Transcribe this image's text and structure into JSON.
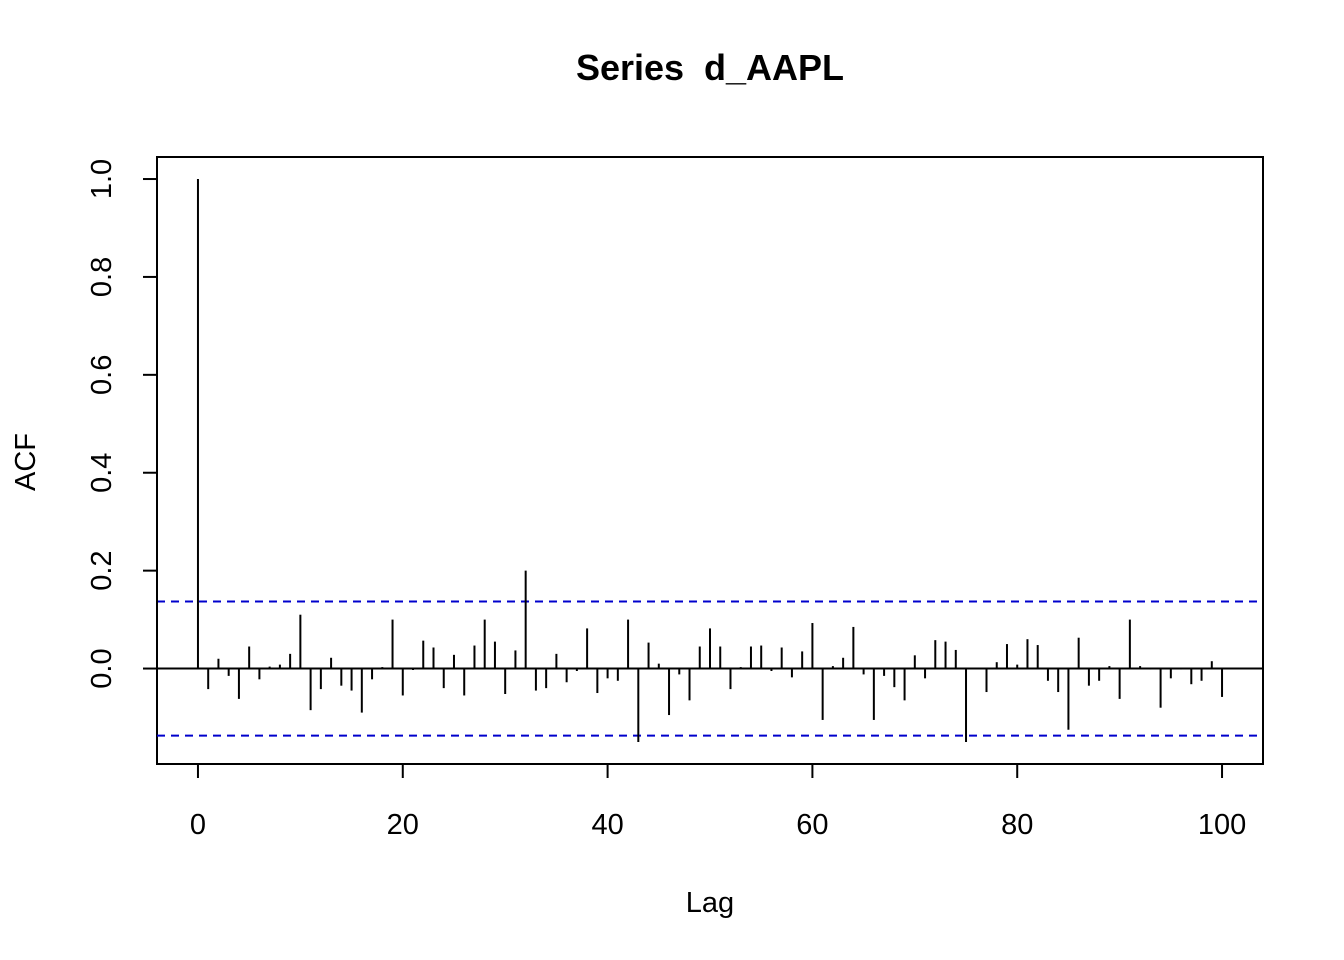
{
  "chart_data": {
    "type": "bar",
    "title": "Series  d_AAPL",
    "xlabel": "Lag",
    "ylabel": "ACF",
    "xlim": [
      -4,
      104
    ],
    "ylim": [
      -0.195,
      1.045
    ],
    "x_ticks": [
      0,
      20,
      40,
      60,
      80,
      100
    ],
    "y_ticks": [
      0.0,
      0.2,
      0.4,
      0.6,
      0.8,
      1.0
    ],
    "confidence_bound": 0.137,
    "colors": {
      "bars": "#000000",
      "confidence": "#0000cc",
      "zero_line": "#000000"
    },
    "lags": [
      0,
      1,
      2,
      3,
      4,
      5,
      6,
      7,
      8,
      9,
      10,
      11,
      12,
      13,
      14,
      15,
      16,
      17,
      18,
      19,
      20,
      21,
      22,
      23,
      24,
      25,
      26,
      27,
      28,
      29,
      30,
      31,
      32,
      33,
      34,
      35,
      36,
      37,
      38,
      39,
      40,
      41,
      42,
      43,
      44,
      45,
      46,
      47,
      48,
      49,
      50,
      51,
      52,
      53,
      54,
      55,
      56,
      57,
      58,
      59,
      60,
      61,
      62,
      63,
      64,
      65,
      66,
      67,
      68,
      69,
      70,
      71,
      72,
      73,
      74,
      75,
      76,
      77,
      78,
      79,
      80,
      81,
      82,
      83,
      84,
      85,
      86,
      87,
      88,
      89,
      90,
      91,
      92,
      93,
      94,
      95,
      96,
      97,
      98,
      99,
      100
    ],
    "values": [
      1.0,
      -0.042,
      0.02,
      -0.015,
      -0.062,
      0.045,
      -0.022,
      0.004,
      0.008,
      0.03,
      0.11,
      -0.085,
      -0.042,
      0.022,
      -0.035,
      -0.045,
      -0.09,
      -0.022,
      0.003,
      0.1,
      -0.055,
      -0.003,
      0.057,
      0.043,
      -0.04,
      0.028,
      -0.055,
      0.047,
      0.1,
      0.055,
      -0.052,
      0.037,
      0.2,
      -0.045,
      -0.04,
      0.03,
      -0.028,
      -0.005,
      0.082,
      -0.05,
      -0.02,
      -0.025,
      0.1,
      -0.15,
      0.053,
      0.01,
      -0.095,
      -0.012,
      -0.065,
      0.045,
      0.082,
      0.045,
      -0.042,
      0.003,
      0.045,
      0.047,
      -0.005,
      0.043,
      -0.018,
      0.035,
      0.093,
      -0.105,
      0.005,
      0.022,
      0.085,
      -0.012,
      -0.105,
      -0.015,
      -0.038,
      -0.065,
      0.027,
      -0.02,
      0.058,
      0.055,
      0.038,
      -0.15,
      0.0,
      -0.048,
      0.013,
      0.05,
      0.008,
      0.06,
      0.048,
      -0.025,
      -0.048,
      -0.125,
      0.063,
      -0.035,
      -0.025,
      0.005,
      -0.062,
      0.1,
      0.005,
      -0.002,
      -0.08,
      -0.02,
      -0.002,
      -0.032,
      -0.025,
      0.015,
      -0.058
    ]
  }
}
